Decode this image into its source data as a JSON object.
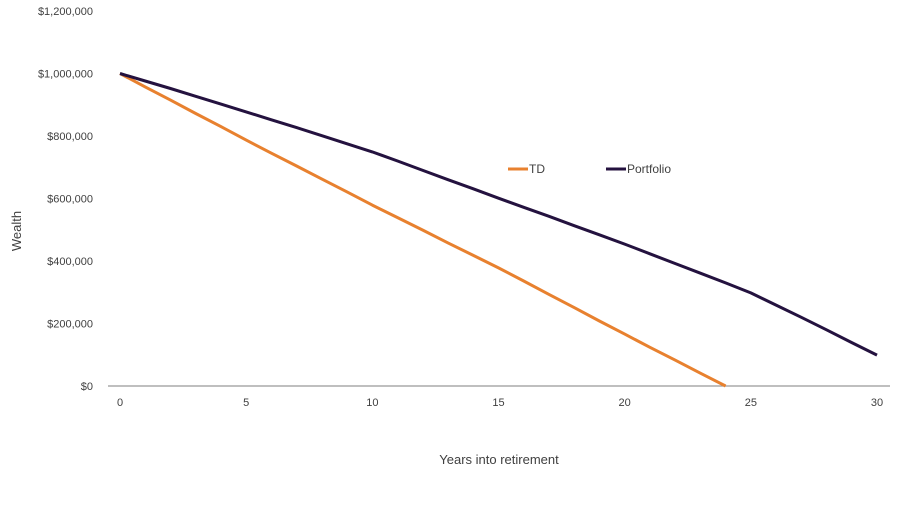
{
  "chart_data": {
    "type": "line",
    "title": "",
    "xlabel": "Years into retirement",
    "ylabel": "Wealth",
    "xlim": [
      0,
      30
    ],
    "ylim": [
      0,
      1200000
    ],
    "x_ticks": [
      "0",
      "5",
      "10",
      "15",
      "20",
      "25",
      "30"
    ],
    "y_ticks": [
      "$0",
      "$200,000",
      "$400,000",
      "$600,000",
      "$800,000",
      "$1,000,000",
      "$1,200,000"
    ],
    "grid": false,
    "legend_position": "top-right",
    "series": [
      {
        "name": "TD",
        "color": "#e8812f",
        "x": [
          0,
          1,
          2,
          3,
          4,
          5,
          6,
          7,
          8,
          9,
          10,
          11,
          12,
          13,
          14,
          15,
          16,
          17,
          18,
          19,
          20,
          21,
          22,
          23,
          24
        ],
        "values": [
          1000000,
          957000,
          915000,
          872000,
          830000,
          787000,
          745000,
          704000,
          662000,
          621000,
          579000,
          539000,
          499000,
          458000,
          418000,
          378000,
          336000,
          293000,
          251000,
          208000,
          166000,
          124000,
          83000,
          41000,
          0
        ]
      },
      {
        "name": "Portfolio",
        "color": "#24123f",
        "x": [
          0,
          1,
          2,
          3,
          4,
          5,
          6,
          7,
          8,
          9,
          10,
          11,
          12,
          13,
          14,
          15,
          16,
          17,
          18,
          19,
          20,
          21,
          22,
          23,
          24,
          25,
          26,
          27,
          28,
          29,
          30
        ],
        "values": [
          1000000,
          976000,
          952000,
          927000,
          902000,
          877000,
          852000,
          827000,
          801000,
          775000,
          749000,
          720000,
          690000,
          660000,
          631000,
          601000,
          572000,
          543000,
          513000,
          484000,
          454000,
          423000,
          392000,
          361000,
          330000,
          298000,
          259000,
          220000,
          180000,
          139000,
          99000
        ]
      }
    ]
  }
}
